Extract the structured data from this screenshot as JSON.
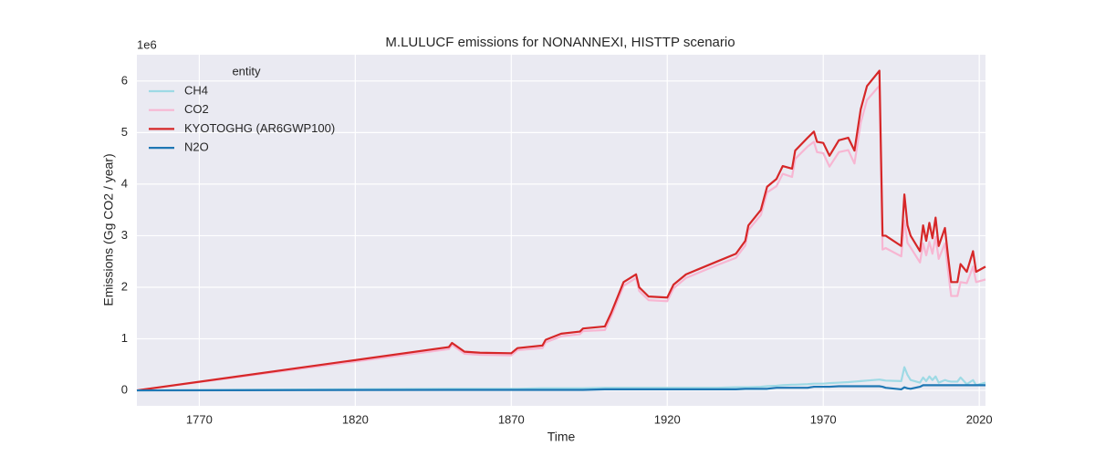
{
  "chart_data": {
    "type": "line",
    "title": "M.LULUCF emissions for NONANNEXI, HISTTP scenario",
    "x_label": "Time",
    "y_label": "Emissions (Gg CO2 / year)",
    "y_offset_label": "1e6",
    "legend_title": "entity",
    "legend_position": "upper left",
    "grid": true,
    "xlim": [
      1750,
      2022
    ],
    "ylim": [
      -0.3,
      6.51
    ],
    "xticks": [
      1770,
      1820,
      1870,
      1920,
      1970,
      2020
    ],
    "yticks": [
      0,
      1,
      2,
      3,
      4,
      5,
      6
    ],
    "x": [
      1750,
      1850,
      1851,
      1855,
      1860,
      1870,
      1872,
      1880,
      1881,
      1886,
      1892,
      1893,
      1900,
      1902,
      1906,
      1910,
      1911,
      1914,
      1920,
      1922,
      1926,
      1930,
      1936,
      1942,
      1945,
      1946,
      1950,
      1952,
      1955,
      1957,
      1960,
      1961,
      1965,
      1967,
      1968,
      1970,
      1972,
      1975,
      1978,
      1980,
      1982,
      1984,
      1988,
      1989,
      1990,
      1995,
      1996,
      1997,
      1998,
      2001,
      2002,
      2003,
      2004,
      2005,
      2006,
      2007,
      2009,
      2010,
      2011,
      2013,
      2014,
      2016,
      2018,
      2019,
      2022
    ],
    "series": [
      {
        "name": "CH4",
        "color": "#9edae5",
        "values": [
          0,
          0.03,
          0.03,
          0.03,
          0.03,
          0.03,
          0.03,
          0.04,
          0.04,
          0.04,
          0.04,
          0.04,
          0.05,
          0.05,
          0.05,
          0.05,
          0.05,
          0.05,
          0.05,
          0.05,
          0.05,
          0.05,
          0.05,
          0.06,
          0.06,
          0.06,
          0.07,
          0.08,
          0.09,
          0.1,
          0.11,
          0.11,
          0.12,
          0.13,
          0.13,
          0.13,
          0.14,
          0.15,
          0.16,
          0.17,
          0.18,
          0.19,
          0.21,
          0.2,
          0.19,
          0.18,
          0.45,
          0.3,
          0.2,
          0.15,
          0.25,
          0.18,
          0.27,
          0.2,
          0.27,
          0.15,
          0.2,
          0.18,
          0.17,
          0.17,
          0.25,
          0.12,
          0.2,
          0.1,
          0.15
        ]
      },
      {
        "name": "CO2",
        "color": "#f7b6d2",
        "values": [
          0,
          0.8,
          0.88,
          0.71,
          0.69,
          0.68,
          0.78,
          0.82,
          0.93,
          1.05,
          1.09,
          1.15,
          1.17,
          1.43,
          2.03,
          2.18,
          1.93,
          1.75,
          1.73,
          1.98,
          2.18,
          2.28,
          2.43,
          2.57,
          2.81,
          3.11,
          3.4,
          3.84,
          3.96,
          4.2,
          4.14,
          4.49,
          4.73,
          4.82,
          4.62,
          4.6,
          4.34,
          4.62,
          4.66,
          4.4,
          5.19,
          5.63,
          5.91,
          2.73,
          2.76,
          2.6,
          3.29,
          2.86,
          2.77,
          2.48,
          2.85,
          2.62,
          2.88,
          2.65,
          2.98,
          2.55,
          2.85,
          2.32,
          1.83,
          1.83,
          2.1,
          2.08,
          2.4,
          2.1,
          2.15
        ]
      },
      {
        "name": "KYOTOGHG (AR6GWP100)",
        "color": "#d62728",
        "values": [
          0,
          0.84,
          0.92,
          0.75,
          0.73,
          0.72,
          0.82,
          0.87,
          0.98,
          1.1,
          1.14,
          1.2,
          1.24,
          1.5,
          2.1,
          2.25,
          2.0,
          1.82,
          1.8,
          2.05,
          2.25,
          2.35,
          2.5,
          2.65,
          2.9,
          3.2,
          3.5,
          3.95,
          4.1,
          4.35,
          4.3,
          4.65,
          4.9,
          5.02,
          4.82,
          4.8,
          4.55,
          4.85,
          4.9,
          4.65,
          5.45,
          5.9,
          6.2,
          3.0,
          3.0,
          2.8,
          3.8,
          3.2,
          3.0,
          2.7,
          3.2,
          2.9,
          3.25,
          2.95,
          3.35,
          2.8,
          3.15,
          2.6,
          2.1,
          2.1,
          2.45,
          2.3,
          2.7,
          2.3,
          2.4
        ]
      },
      {
        "name": "N2O",
        "color": "#1f77b4",
        "values": [
          0,
          0.01,
          0.01,
          0.01,
          0.01,
          0.01,
          0.01,
          0.01,
          0.01,
          0.01,
          0.01,
          0.01,
          0.02,
          0.02,
          0.02,
          0.02,
          0.02,
          0.02,
          0.02,
          0.02,
          0.02,
          0.02,
          0.02,
          0.02,
          0.03,
          0.03,
          0.03,
          0.03,
          0.05,
          0.05,
          0.05,
          0.05,
          0.05,
          0.07,
          0.07,
          0.07,
          0.07,
          0.08,
          0.08,
          0.08,
          0.08,
          0.08,
          0.08,
          0.07,
          0.05,
          0.02,
          0.06,
          0.04,
          0.03,
          0.07,
          0.1,
          0.1,
          0.1,
          0.1,
          0.1,
          0.1,
          0.1,
          0.1,
          0.1,
          0.1,
          0.1,
          0.1,
          0.1,
          0.1,
          0.1
        ]
      }
    ]
  }
}
